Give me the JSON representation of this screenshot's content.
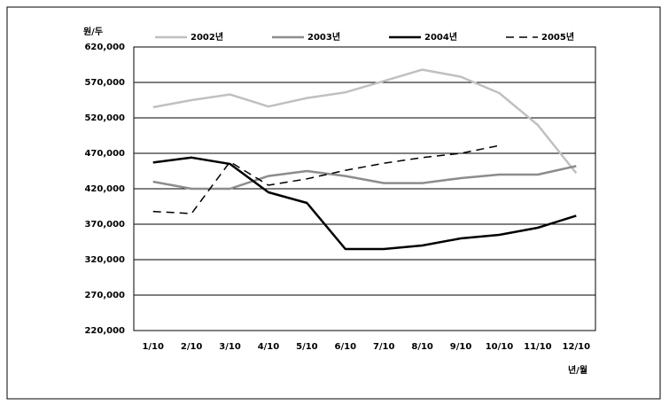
{
  "chart_data": {
    "type": "line",
    "y_label": "원/두",
    "x_label": "년/월",
    "categories": [
      "1/10",
      "2/10",
      "3/10",
      "4/10",
      "5/10",
      "6/10",
      "7/10",
      "8/10",
      "9/10",
      "10/10",
      "11/10",
      "12/10"
    ],
    "series": [
      {
        "name": "2002년",
        "color": "#c0c0c0",
        "dash": false,
        "values": [
          535000,
          545000,
          553000,
          536000,
          548000,
          556000,
          572000,
          588000,
          578000,
          555000,
          510000,
          442000
        ]
      },
      {
        "name": "2003년",
        "color": "#8c8c8c",
        "dash": false,
        "values": [
          430000,
          420000,
          420000,
          438000,
          445000,
          438000,
          428000,
          428000,
          435000,
          440000,
          440000,
          452000
        ]
      },
      {
        "name": "2004년",
        "color": "#000000",
        "dash": false,
        "values": [
          457000,
          464000,
          455000,
          415000,
          400000,
          335000,
          335000,
          340000,
          350000,
          355000,
          365000,
          382000
        ]
      },
      {
        "name": "2005년",
        "color": "#000000",
        "dash": true,
        "values": [
          388000,
          385000,
          458000,
          425000,
          434000,
          446000,
          456000,
          464000,
          470000,
          481000,
          null,
          null
        ]
      }
    ],
    "ylim": [
      220000,
      620000
    ],
    "yticks": [
      {
        "value": 220000,
        "label": "220,000"
      },
      {
        "value": 270000,
        "label": "270,000"
      },
      {
        "value": 320000,
        "label": "320,000"
      },
      {
        "value": 370000,
        "label": "370,000"
      },
      {
        "value": 420000,
        "label": "420,000"
      },
      {
        "value": 470000,
        "label": "470,000"
      },
      {
        "value": 520000,
        "label": "520,000"
      },
      {
        "value": 570000,
        "label": "570,000"
      },
      {
        "value": 620000,
        "label": "620,000"
      }
    ],
    "grid": true
  }
}
